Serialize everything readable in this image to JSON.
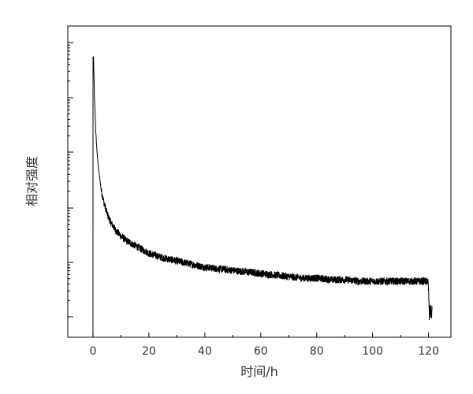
{
  "chart_data": {
    "type": "line",
    "title": "",
    "xlabel": "时间/h",
    "ylabel": "相对强度",
    "xlim": [
      -9,
      128
    ],
    "ylim": [
      0,
      1
    ],
    "x_ticks": [
      0,
      20,
      40,
      60,
      80,
      100,
      120
    ],
    "x_tick_labels": [
      "0",
      "20",
      "40",
      "60",
      "80",
      "100",
      "120"
    ],
    "y_tick_labels_shown": false,
    "grid": false,
    "legend": "none",
    "series": [
      {
        "color": "#000000",
        "noise_amplitude": 0.012,
        "x": [
          0.0,
          0.2,
          0.5,
          1,
          1.5,
          2,
          3,
          4,
          5,
          6,
          8,
          10,
          12,
          15,
          20,
          25,
          30,
          35,
          40,
          45,
          50,
          55,
          60,
          65,
          70,
          75,
          80,
          85,
          90,
          95,
          100,
          105,
          110,
          115,
          119.8,
          120.0,
          120.3,
          120.6,
          121.0,
          121.3
        ],
        "y": [
          0.0,
          0.9,
          0.78,
          0.66,
          0.59,
          0.54,
          0.47,
          0.43,
          0.4,
          0.375,
          0.345,
          0.325,
          0.31,
          0.295,
          0.27,
          0.255,
          0.245,
          0.235,
          0.225,
          0.22,
          0.215,
          0.21,
          0.205,
          0.2,
          0.195,
          0.19,
          0.19,
          0.185,
          0.185,
          0.18,
          0.18,
          0.18,
          0.18,
          0.18,
          0.18,
          0.15,
          0.065,
          0.09,
          0.075,
          0.085
        ]
      }
    ]
  }
}
